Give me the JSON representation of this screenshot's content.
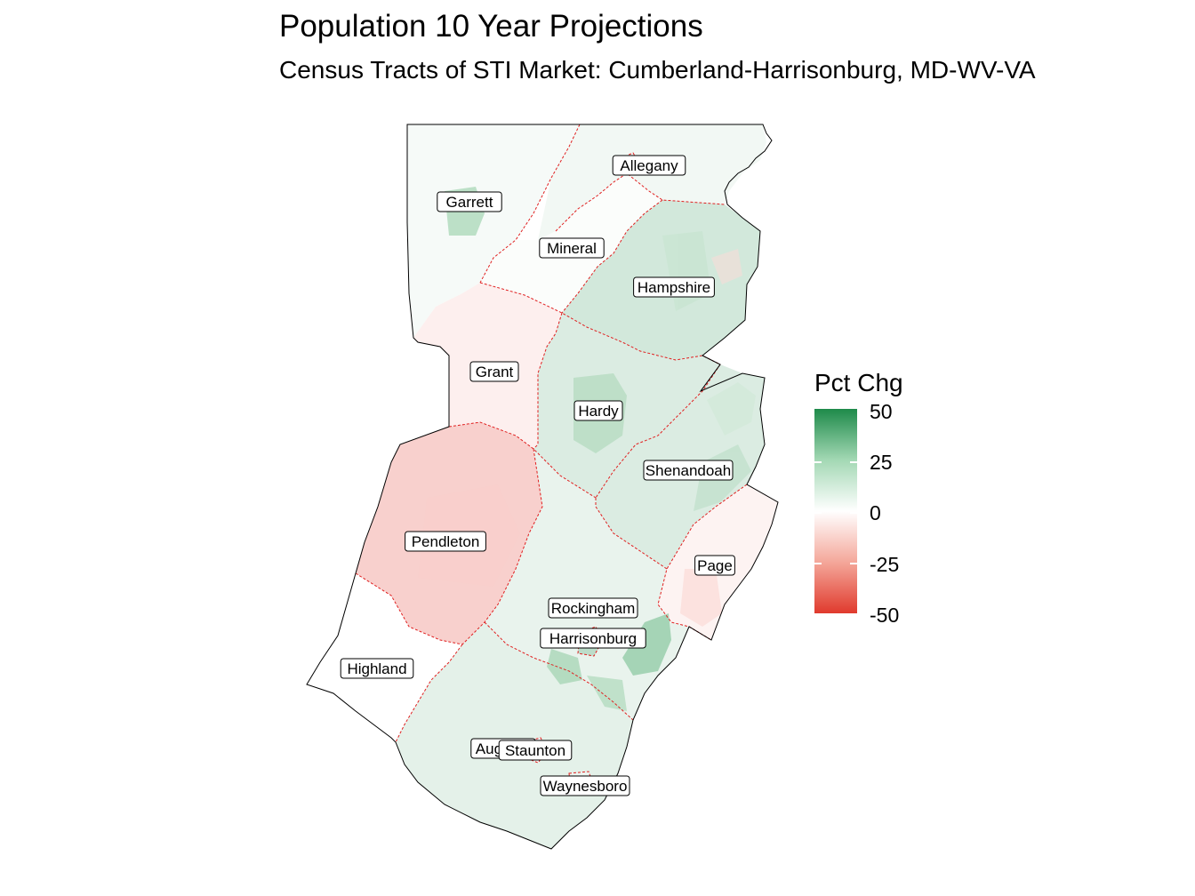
{
  "title": "Population 10 Year Projections",
  "subtitle": "Census Tracts of STI Market: Cumberland-Harrisonburg, MD-WV-VA",
  "legend": {
    "title": "Pct Chg",
    "ticks": [
      "50",
      "25",
      "0",
      "-25",
      "-50"
    ],
    "scale": {
      "min": -50,
      "max": 50,
      "low_color": "#e03a2d",
      "mid_color": "#ffffff",
      "high_color": "#1e8a4a"
    }
  },
  "counties": [
    {
      "name": "Allegany",
      "pct_chg": 3
    },
    {
      "name": "Garrett",
      "pct_chg": 2
    },
    {
      "name": "Mineral",
      "pct_chg": 1
    },
    {
      "name": "Hampshire",
      "pct_chg": 10
    },
    {
      "name": "Grant",
      "pct_chg": -4
    },
    {
      "name": "Hardy",
      "pct_chg": 8
    },
    {
      "name": "Shenandoah",
      "pct_chg": 8
    },
    {
      "name": "Pendleton",
      "pct_chg": -12
    },
    {
      "name": "Page",
      "pct_chg": -3
    },
    {
      "name": "Rockingham",
      "pct_chg": 5
    },
    {
      "name": "Harrisonburg",
      "pct_chg": 15
    },
    {
      "name": "Highland",
      "pct_chg": 0
    },
    {
      "name": "Augusta",
      "pct_chg": 6
    },
    {
      "name": "Staunton",
      "pct_chg": 2
    },
    {
      "name": "Waynesboro",
      "pct_chg": 4
    }
  ]
}
